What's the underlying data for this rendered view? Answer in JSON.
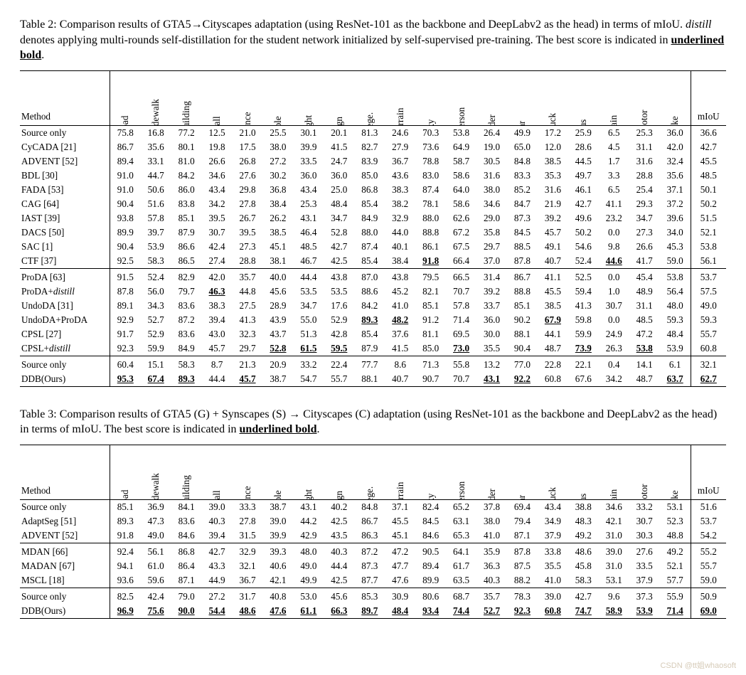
{
  "table2": {
    "caption_html": "Table 2: Comparison results of GTA5→Cityscapes adaptation (using ResNet-101 as the backbone and DeepLabv2 as the head) in terms of mIoU. <span class=\"distill-word\">distill</span> denotes applying multi-rounds self-distillation for the student network initialized by self-supervised pre-training. The best score is indicated in <span class=\"ub\">underlined bold</span>.",
    "columns": [
      "road",
      "sidewalk",
      "building",
      "wall",
      "fence",
      "pole",
      "light",
      "sign",
      "vege.",
      "terrain",
      "sky",
      "person",
      "rider",
      "car",
      "truck",
      "bus",
      "train",
      "motor",
      "bike"
    ],
    "miou_label": "mIoU",
    "method_label": "Method",
    "groups": [
      {
        "rows": [
          {
            "method": "Source only",
            "vals": [
              "75.8",
              "16.8",
              "77.2",
              "12.5",
              "21.0",
              "25.5",
              "30.1",
              "20.1",
              "81.3",
              "24.6",
              "70.3",
              "53.8",
              "26.4",
              "49.9",
              "17.2",
              "25.9",
              "6.5",
              "25.3",
              "36.0"
            ],
            "miou": "36.6"
          },
          {
            "method": "CyCADA [21]",
            "vals": [
              "86.7",
              "35.6",
              "80.1",
              "19.8",
              "17.5",
              "38.0",
              "39.9",
              "41.5",
              "82.7",
              "27.9",
              "73.6",
              "64.9",
              "19.0",
              "65.0",
              "12.0",
              "28.6",
              "4.5",
              "31.1",
              "42.0"
            ],
            "miou": "42.7"
          },
          {
            "method": "ADVENT [52]",
            "vals": [
              "89.4",
              "33.1",
              "81.0",
              "26.6",
              "26.8",
              "27.2",
              "33.5",
              "24.7",
              "83.9",
              "36.7",
              "78.8",
              "58.7",
              "30.5",
              "84.8",
              "38.5",
              "44.5",
              "1.7",
              "31.6",
              "32.4"
            ],
            "miou": "45.5"
          },
          {
            "method": "BDL [30]",
            "vals": [
              "91.0",
              "44.7",
              "84.2",
              "34.6",
              "27.6",
              "30.2",
              "36.0",
              "36.0",
              "85.0",
              "43.6",
              "83.0",
              "58.6",
              "31.6",
              "83.3",
              "35.3",
              "49.7",
              "3.3",
              "28.8",
              "35.6"
            ],
            "miou": "48.5"
          },
          {
            "method": "FADA [53]",
            "vals": [
              "91.0",
              "50.6",
              "86.0",
              "43.4",
              "29.8",
              "36.8",
              "43.4",
              "25.0",
              "86.8",
              "38.3",
              "87.4",
              "64.0",
              "38.0",
              "85.2",
              "31.6",
              "46.1",
              "6.5",
              "25.4",
              "37.1"
            ],
            "miou": "50.1"
          },
          {
            "method": "CAG [64]",
            "vals": [
              "90.4",
              "51.6",
              "83.8",
              "34.2",
              "27.8",
              "38.4",
              "25.3",
              "48.4",
              "85.4",
              "38.2",
              "78.1",
              "58.6",
              "34.6",
              "84.7",
              "21.9",
              "42.7",
              "41.1",
              "29.3",
              "37.2"
            ],
            "miou": "50.2"
          },
          {
            "method": "IAST [39]",
            "vals": [
              "93.8",
              "57.8",
              "85.1",
              "39.5",
              "26.7",
              "26.2",
              "43.1",
              "34.7",
              "84.9",
              "32.9",
              "88.0",
              "62.6",
              "29.0",
              "87.3",
              "39.2",
              "49.6",
              "23.2",
              "34.7",
              "39.6"
            ],
            "miou": "51.5"
          },
          {
            "method": "DACS [50]",
            "vals": [
              "89.9",
              "39.7",
              "87.9",
              "30.7",
              "39.5",
              "38.5",
              "46.4",
              "52.8",
              "88.0",
              "44.0",
              "88.8",
              "67.2",
              "35.8",
              "84.5",
              "45.7",
              "50.2",
              "0.0",
              "27.3",
              "34.0"
            ],
            "miou": "52.1"
          },
          {
            "method": "SAC [1]",
            "vals": [
              "90.4",
              "53.9",
              "86.6",
              "42.4",
              "27.3",
              "45.1",
              "48.5",
              "42.7",
              "87.4",
              "40.1",
              "86.1",
              "67.5",
              "29.7",
              "88.5",
              "49.1",
              "54.6",
              "9.8",
              "26.6",
              "45.3"
            ],
            "miou": "53.8"
          },
          {
            "method": "CTF [37]",
            "vals": [
              "92.5",
              "58.3",
              "86.5",
              "27.4",
              "28.8",
              "38.1",
              "46.7",
              "42.5",
              "85.4",
              "38.4",
              "91.8",
              "66.4",
              "37.0",
              "87.8",
              "40.7",
              "52.4",
              "44.6",
              "41.7",
              "59.0"
            ],
            "bold": [
              10,
              16
            ],
            "miou": "56.1"
          }
        ]
      },
      {
        "rows": [
          {
            "method": "ProDA [63]",
            "vals": [
              "91.5",
              "52.4",
              "82.9",
              "42.0",
              "35.7",
              "40.0",
              "44.4",
              "43.8",
              "87.0",
              "43.8",
              "79.5",
              "66.5",
              "31.4",
              "86.7",
              "41.1",
              "52.5",
              "0.0",
              "45.4",
              "53.8"
            ],
            "miou": "53.7"
          },
          {
            "method_html": "ProDA+<span class=\"distill-word\">distill</span>",
            "vals": [
              "87.8",
              "56.0",
              "79.7",
              "46.3",
              "44.8",
              "45.6",
              "53.5",
              "53.5",
              "88.6",
              "45.2",
              "82.1",
              "70.7",
              "39.2",
              "88.8",
              "45.5",
              "59.4",
              "1.0",
              "48.9",
              "56.4"
            ],
            "bold": [
              3
            ],
            "miou": "57.5"
          },
          {
            "method": "UndoDA [31]",
            "vals": [
              "89.1",
              "34.3",
              "83.6",
              "38.3",
              "27.5",
              "28.9",
              "34.7",
              "17.6",
              "84.2",
              "41.0",
              "85.1",
              "57.8",
              "33.7",
              "85.1",
              "38.5",
              "41.3",
              "30.7",
              "31.1",
              "48.0"
            ],
            "miou": "49.0"
          },
          {
            "method": "UndoDA+ProDA",
            "vals": [
              "92.9",
              "52.7",
              "87.2",
              "39.4",
              "41.3",
              "43.9",
              "55.0",
              "52.9",
              "89.3",
              "48.2",
              "91.2",
              "71.4",
              "36.0",
              "90.2",
              "67.9",
              "59.8",
              "0.0",
              "48.5",
              "59.3"
            ],
            "bold": [
              8,
              9,
              14
            ],
            "miou": "59.3"
          },
          {
            "method": "CPSL [27]",
            "vals": [
              "91.7",
              "52.9",
              "83.6",
              "43.0",
              "32.3",
              "43.7",
              "51.3",
              "42.8",
              "85.4",
              "37.6",
              "81.1",
              "69.5",
              "30.0",
              "88.1",
              "44.1",
              "59.9",
              "24.9",
              "47.2",
              "48.4"
            ],
            "miou": "55.7"
          },
          {
            "method_html": "CPSL+<span class=\"distill-word\">distill</span>",
            "vals": [
              "92.3",
              "59.9",
              "84.9",
              "45.7",
              "29.7",
              "52.8",
              "61.5",
              "59.5",
              "87.9",
              "41.5",
              "85.0",
              "73.0",
              "35.5",
              "90.4",
              "48.7",
              "73.9",
              "26.3",
              "53.8",
              "53.9"
            ],
            "bold": [
              5,
              6,
              7,
              11,
              15,
              17
            ],
            "miou": "60.8"
          }
        ]
      },
      {
        "rows": [
          {
            "method": "Source only",
            "vals": [
              "60.4",
              "15.1",
              "58.3",
              "8.7",
              "21.3",
              "20.9",
              "33.2",
              "22.4",
              "77.7",
              "8.6",
              "71.3",
              "55.8",
              "13.2",
              "77.0",
              "22.8",
              "22.1",
              "0.4",
              "14.1",
              "6.1"
            ],
            "miou": "32.1"
          },
          {
            "method": "DDB(Ours)",
            "vals": [
              "95.3",
              "67.4",
              "89.3",
              "44.4",
              "45.7",
              "38.7",
              "54.7",
              "55.7",
              "88.1",
              "40.7",
              "90.7",
              "70.7",
              "43.1",
              "92.2",
              "60.8",
              "67.6",
              "34.2",
              "48.7",
              "63.7"
            ],
            "bold": [
              0,
              1,
              2,
              4,
              12,
              13,
              18
            ],
            "miou": "62.7",
            "miou_bold": true
          }
        ]
      }
    ]
  },
  "table3": {
    "caption_html": "Table 3: Comparison results of GTA5 (G) + Synscapes (S) → Cityscapes (C) adaptation (using ResNet-101 as the backbone and DeepLabv2 as the head) in terms of mIoU. The best score is indicated in <span class=\"ub\">underlined bold</span>.",
    "columns": [
      "road",
      "sidewalk",
      "building",
      "wall",
      "fence",
      "pole",
      "light",
      "sign",
      "vege.",
      "terrain",
      "sky",
      "person",
      "rider",
      "car",
      "truck",
      "bus",
      "train",
      "motor",
      "bike"
    ],
    "miou_label": "mIoU",
    "method_label": "Method",
    "groups": [
      {
        "rows": [
          {
            "method": "Source only",
            "vals": [
              "85.1",
              "36.9",
              "84.1",
              "39.0",
              "33.3",
              "38.7",
              "43.1",
              "40.2",
              "84.8",
              "37.1",
              "82.4",
              "65.2",
              "37.8",
              "69.4",
              "43.4",
              "38.8",
              "34.6",
              "33.2",
              "53.1"
            ],
            "miou": "51.6"
          },
          {
            "method": "AdaptSeg [51]",
            "vals": [
              "89.3",
              "47.3",
              "83.6",
              "40.3",
              "27.8",
              "39.0",
              "44.2",
              "42.5",
              "86.7",
              "45.5",
              "84.5",
              "63.1",
              "38.0",
              "79.4",
              "34.9",
              "48.3",
              "42.1",
              "30.7",
              "52.3"
            ],
            "miou": "53.7"
          },
          {
            "method": "ADVENT [52]",
            "vals": [
              "91.8",
              "49.0",
              "84.6",
              "39.4",
              "31.5",
              "39.9",
              "42.9",
              "43.5",
              "86.3",
              "45.1",
              "84.6",
              "65.3",
              "41.0",
              "87.1",
              "37.9",
              "49.2",
              "31.0",
              "30.3",
              "48.8"
            ],
            "miou": "54.2"
          }
        ]
      },
      {
        "rows": [
          {
            "method": "MDAN [66]",
            "vals": [
              "92.4",
              "56.1",
              "86.8",
              "42.7",
              "32.9",
              "39.3",
              "48.0",
              "40.3",
              "87.2",
              "47.2",
              "90.5",
              "64.1",
              "35.9",
              "87.8",
              "33.8",
              "48.6",
              "39.0",
              "27.6",
              "49.2"
            ],
            "miou": "55.2"
          },
          {
            "method": "MADAN [67]",
            "vals": [
              "94.1",
              "61.0",
              "86.4",
              "43.3",
              "32.1",
              "40.6",
              "49.0",
              "44.4",
              "87.3",
              "47.7",
              "89.4",
              "61.7",
              "36.3",
              "87.5",
              "35.5",
              "45.8",
              "31.0",
              "33.5",
              "52.1"
            ],
            "miou": "55.7"
          },
          {
            "method": "MSCL [18]",
            "vals": [
              "93.6",
              "59.6",
              "87.1",
              "44.9",
              "36.7",
              "42.1",
              "49.9",
              "42.5",
              "87.7",
              "47.6",
              "89.9",
              "63.5",
              "40.3",
              "88.2",
              "41.0",
              "58.3",
              "53.1",
              "37.9",
              "57.7"
            ],
            "miou": "59.0"
          }
        ]
      },
      {
        "rows": [
          {
            "method": "Source only",
            "vals": [
              "82.5",
              "42.4",
              "79.0",
              "27.2",
              "31.7",
              "40.8",
              "53.0",
              "45.6",
              "85.3",
              "30.9",
              "80.6",
              "68.7",
              "35.7",
              "78.3",
              "39.0",
              "42.7",
              "9.6",
              "37.3",
              "55.9"
            ],
            "miou": "50.9"
          },
          {
            "method": "DDB(Ours)",
            "vals": [
              "96.9",
              "75.6",
              "90.0",
              "54.4",
              "48.6",
              "47.6",
              "61.1",
              "66.3",
              "89.7",
              "48.4",
              "93.4",
              "74.4",
              "52.7",
              "92.3",
              "60.8",
              "74.7",
              "58.9",
              "53.9",
              "71.4"
            ],
            "bold": [
              0,
              1,
              2,
              3,
              4,
              5,
              6,
              7,
              8,
              9,
              10,
              11,
              12,
              13,
              14,
              15,
              16,
              17,
              18
            ],
            "miou": "69.0",
            "miou_bold": true
          }
        ]
      }
    ]
  },
  "watermark": "CSDN @tt姐whaosoft"
}
